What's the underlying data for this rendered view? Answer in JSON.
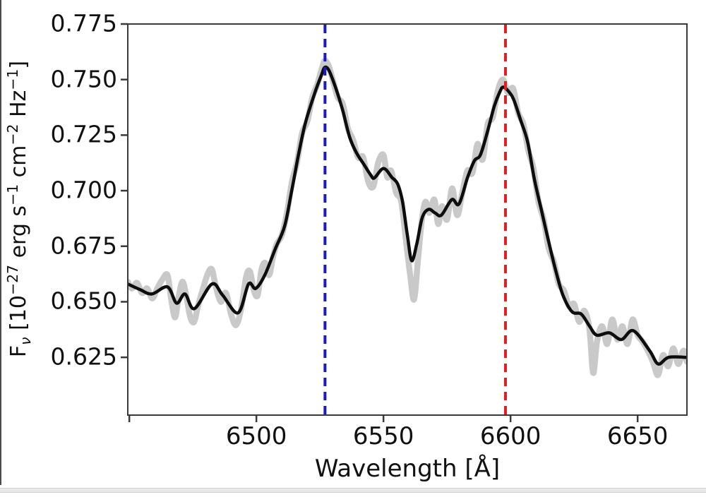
{
  "chart_data": {
    "type": "line",
    "title": "",
    "xlabel": "Wavelength [Å]",
    "ylabel": "Fν [10−27 erg s−1 cm−2 Hz−1]",
    "ylabel_parts": [
      {
        "t": "F"
      },
      {
        "sub": "ν"
      },
      {
        "t": " [10"
      },
      {
        "sup": "−27"
      },
      {
        "t": " erg s"
      },
      {
        "sup": "−1"
      },
      {
        "t": " cm"
      },
      {
        "sup": "−2"
      },
      {
        "t": " Hz"
      },
      {
        "sup": "−1"
      },
      {
        "t": "]"
      }
    ],
    "xlim": [
      6449.4,
      6669.4
    ],
    "ylim": [
      0.599,
      0.775
    ],
    "grid": false,
    "legend": null,
    "axis_color": "#3a3a3a",
    "text_color": "#111111",
    "x_ticks": [
      {
        "value": 6450,
        "label": ""
      },
      {
        "value": 6500,
        "label": "6500"
      },
      {
        "value": 6550,
        "label": "6550"
      },
      {
        "value": 6600,
        "label": "6600"
      },
      {
        "value": 6650,
        "label": "6650"
      }
    ],
    "y_ticks": [
      {
        "value": 0.625,
        "label": "0.625"
      },
      {
        "value": 0.65,
        "label": "0.650"
      },
      {
        "value": 0.675,
        "label": "0.675"
      },
      {
        "value": 0.7,
        "label": "0.700"
      },
      {
        "value": 0.725,
        "label": "0.725"
      },
      {
        "value": 0.75,
        "label": "0.750"
      },
      {
        "value": 0.775,
        "label": "0.775"
      }
    ],
    "vlines": [
      {
        "name": "blue-peak-marker",
        "x": 6527,
        "color": "#1a1ac8",
        "style": "dashed",
        "width": 4
      },
      {
        "name": "red-peak-marker",
        "x": 6598,
        "color": "#dc2024",
        "style": "dashed",
        "width": 4
      }
    ],
    "series": [
      {
        "name": "raw-spectrum",
        "color": "#c9c9c9",
        "width": 8.5,
        "points": [
          [
            6449.4,
            0.659
          ],
          [
            6451,
            0.656
          ],
          [
            6453,
            0.6585
          ],
          [
            6455,
            0.654
          ],
          [
            6457,
            0.656
          ],
          [
            6459,
            0.6515
          ],
          [
            6461,
            0.656
          ],
          [
            6463,
            0.66
          ],
          [
            6465,
            0.662
          ],
          [
            6466.5,
            0.651
          ],
          [
            6468,
            0.643
          ],
          [
            6469.5,
            0.653
          ],
          [
            6471,
            0.659
          ],
          [
            6472.5,
            0.652
          ],
          [
            6474,
            0.643
          ],
          [
            6475.5,
            0.641
          ],
          [
            6477,
            0.648
          ],
          [
            6479,
            0.656
          ],
          [
            6481,
            0.663
          ],
          [
            6482.5,
            0.6645
          ],
          [
            6484,
            0.657
          ],
          [
            6486,
            0.65
          ],
          [
            6488,
            0.654
          ],
          [
            6490,
            0.6445
          ],
          [
            6492,
            0.6395
          ],
          [
            6494,
            0.647
          ],
          [
            6496,
            0.6615
          ],
          [
            6497.5,
            0.6635
          ],
          [
            6499,
            0.655
          ],
          [
            6500.5,
            0.653
          ],
          [
            6502,
            0.6645
          ],
          [
            6503.5,
            0.6675
          ],
          [
            6505,
            0.662
          ],
          [
            6506.5,
            0.67
          ],
          [
            6508,
            0.676
          ],
          [
            6510,
            0.68
          ],
          [
            6512,
            0.69
          ],
          [
            6514,
            0.704
          ],
          [
            6516,
            0.713
          ],
          [
            6518,
            0.726
          ],
          [
            6520,
            0.731
          ],
          [
            6522,
            0.742
          ],
          [
            6524,
            0.748
          ],
          [
            6526,
            0.756
          ],
          [
            6527,
            0.7585
          ],
          [
            6528.5,
            0.756
          ],
          [
            6530,
            0.75
          ],
          [
            6532,
            0.742
          ],
          [
            6534,
            0.739
          ],
          [
            6536,
            0.728
          ],
          [
            6538,
            0.723
          ],
          [
            6540,
            0.715
          ],
          [
            6542,
            0.715
          ],
          [
            6544,
            0.704
          ],
          [
            6546,
            0.702
          ],
          [
            6548,
            0.713
          ],
          [
            6550,
            0.716
          ],
          [
            6551.5,
            0.706
          ],
          [
            6553,
            0.709
          ],
          [
            6555,
            0.699
          ],
          [
            6557,
            0.695
          ],
          [
            6559,
            0.676
          ],
          [
            6560.5,
            0.662
          ],
          [
            6562,
            0.651
          ],
          [
            6563.5,
            0.668
          ],
          [
            6565,
            0.686
          ],
          [
            6566.5,
            0.695
          ],
          [
            6568,
            0.69
          ],
          [
            6570,
            0.696
          ],
          [
            6571.5,
            0.685
          ],
          [
            6573,
            0.693
          ],
          [
            6575,
            0.687
          ],
          [
            6577,
            0.701
          ],
          [
            6579,
            0.689
          ],
          [
            6581,
            0.699
          ],
          [
            6583,
            0.709
          ],
          [
            6585,
            0.708
          ],
          [
            6587,
            0.721
          ],
          [
            6589,
            0.714
          ],
          [
            6591,
            0.73
          ],
          [
            6593,
            0.733
          ],
          [
            6595,
            0.745
          ],
          [
            6597,
            0.75
          ],
          [
            6599,
            0.744
          ],
          [
            6601,
            0.746
          ],
          [
            6603,
            0.735
          ],
          [
            6605,
            0.73
          ],
          [
            6607,
            0.718
          ],
          [
            6609,
            0.71
          ],
          [
            6611,
            0.695
          ],
          [
            6613,
            0.687
          ],
          [
            6615,
            0.674
          ],
          [
            6617,
            0.668
          ],
          [
            6619,
            0.658
          ],
          [
            6621,
            0.655
          ],
          [
            6623,
            0.648
          ],
          [
            6625,
            0.649
          ],
          [
            6627,
            0.641
          ],
          [
            6629,
            0.646
          ],
          [
            6631,
            0.638
          ],
          [
            6632.5,
            0.618
          ],
          [
            6634,
            0.632
          ],
          [
            6636,
            0.639
          ],
          [
            6638,
            0.631
          ],
          [
            6640,
            0.642
          ],
          [
            6642,
            0.633
          ],
          [
            6644,
            0.639
          ],
          [
            6646,
            0.631
          ],
          [
            6648,
            0.642
          ],
          [
            6650,
            0.635
          ],
          [
            6652,
            0.632
          ],
          [
            6654,
            0.628
          ],
          [
            6656,
            0.623
          ],
          [
            6658,
            0.617
          ],
          [
            6660,
            0.626
          ],
          [
            6662,
            0.621
          ],
          [
            6664,
            0.629
          ],
          [
            6666,
            0.622
          ],
          [
            6668,
            0.628
          ],
          [
            6669.4,
            0.623
          ]
        ]
      },
      {
        "name": "smoothed-spectrum",
        "color": "#0d0d0d",
        "width": 4.5,
        "points": [
          [
            6449.4,
            0.658
          ],
          [
            6454.2,
            0.6555
          ],
          [
            6458.9,
            0.6535
          ],
          [
            6465,
            0.6567
          ],
          [
            6468.6,
            0.6494
          ],
          [
            6471.9,
            0.6535
          ],
          [
            6475.6,
            0.6469
          ],
          [
            6482.5,
            0.658
          ],
          [
            6486.7,
            0.653
          ],
          [
            6492.8,
            0.645
          ],
          [
            6496.9,
            0.658
          ],
          [
            6499.7,
            0.656
          ],
          [
            6503.3,
            0.662
          ],
          [
            6507.5,
            0.674
          ],
          [
            6511.1,
            0.684
          ],
          [
            6513.9,
            0.7
          ],
          [
            6516.7,
            0.717
          ],
          [
            6519.4,
            0.731
          ],
          [
            6523.3,
            0.745
          ],
          [
            6525.6,
            0.752
          ],
          [
            6526.9,
            0.7555
          ],
          [
            6528.6,
            0.754
          ],
          [
            6531.1,
            0.7466
          ],
          [
            6533.9,
            0.7364
          ],
          [
            6536.7,
            0.724
          ],
          [
            6539.4,
            0.717
          ],
          [
            6542.2,
            0.712
          ],
          [
            6545,
            0.707
          ],
          [
            6546.4,
            0.7057
          ],
          [
            6550,
            0.71
          ],
          [
            6553.3,
            0.706
          ],
          [
            6555.6,
            0.703
          ],
          [
            6557.5,
            0.695
          ],
          [
            6559.4,
            0.68
          ],
          [
            6561.1,
            0.6685
          ],
          [
            6563.1,
            0.676
          ],
          [
            6565.3,
            0.688
          ],
          [
            6567.8,
            0.6916
          ],
          [
            6570.3,
            0.69
          ],
          [
            6572.8,
            0.689
          ],
          [
            6576.9,
            0.696
          ],
          [
            6579.7,
            0.694
          ],
          [
            6583.1,
            0.706
          ],
          [
            6585.8,
            0.7135
          ],
          [
            6588.1,
            0.716
          ],
          [
            6590.8,
            0.726
          ],
          [
            6593.6,
            0.738
          ],
          [
            6595.8,
            0.7445
          ],
          [
            6597.2,
            0.7466
          ],
          [
            6599.7,
            0.744
          ],
          [
            6601.4,
            0.7405
          ],
          [
            6603.9,
            0.732
          ],
          [
            6606.7,
            0.722
          ],
          [
            6609.4,
            0.705
          ],
          [
            6612.2,
            0.691
          ],
          [
            6615,
            0.677
          ],
          [
            6617.8,
            0.664
          ],
          [
            6620.6,
            0.653
          ],
          [
            6624.2,
            0.6455
          ],
          [
            6627.8,
            0.6445
          ],
          [
            6631.1,
            0.639
          ],
          [
            6633.9,
            0.635
          ],
          [
            6638.9,
            0.636
          ],
          [
            6643.6,
            0.633
          ],
          [
            6648.3,
            0.637
          ],
          [
            6654.7,
            0.628
          ],
          [
            6658.1,
            0.622
          ],
          [
            6662.2,
            0.625
          ],
          [
            6669.4,
            0.625
          ]
        ]
      }
    ]
  }
}
